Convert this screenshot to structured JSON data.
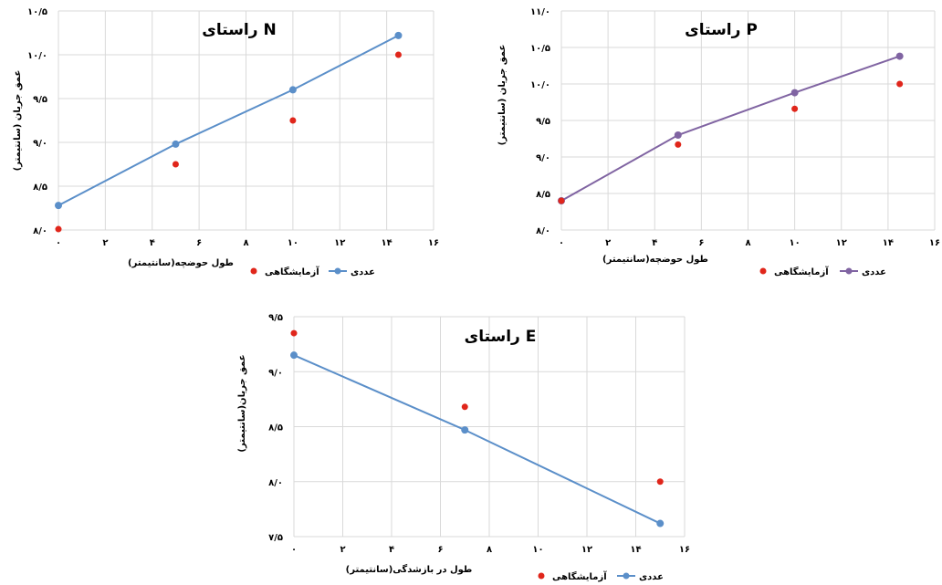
{
  "chart_data": [
    {
      "id": "N",
      "type": "line",
      "title": "راستای N",
      "xlabel": "طول حوضچه(سانتیمتر)",
      "ylabel": "عمق جریان (سانتیمتر)",
      "xlim": [
        0,
        16
      ],
      "ylim": [
        8.0,
        10.5
      ],
      "x_ticks": [
        0,
        2,
        4,
        6,
        8,
        10,
        12,
        14,
        16
      ],
      "x_tick_labels": [
        "۰",
        "۲",
        "۴",
        "۶",
        "۸",
        "۱۰",
        "۱۲",
        "۱۴",
        "۱۶"
      ],
      "y_ticks": [
        8.0,
        8.5,
        9.0,
        9.5,
        10.0,
        10.5
      ],
      "y_tick_labels": [
        "۸/۰",
        "۸/۵",
        "۹/۰",
        "۹/۵",
        "۱۰/۰",
        "۱۰/۵"
      ],
      "grid": true,
      "legend_position": "bottom",
      "series": [
        {
          "name": "عددی",
          "kind": "line",
          "color": "#5b8fc9",
          "x": [
            0,
            5,
            10,
            14.5
          ],
          "y": [
            8.28,
            8.98,
            9.6,
            10.22
          ]
        },
        {
          "name": "آزمایشگاهی",
          "kind": "scatter",
          "color": "#e0261b",
          "x": [
            0,
            5,
            10,
            14.5
          ],
          "y": [
            8.01,
            8.75,
            9.25,
            10.0
          ]
        }
      ]
    },
    {
      "id": "P",
      "type": "line",
      "title": "راستای P",
      "xlabel": "طول حوضچه(سانتیمتر)",
      "ylabel": "عمق جریان (سانتیمتر)",
      "xlim": [
        0,
        16
      ],
      "ylim": [
        8.0,
        11.0
      ],
      "x_ticks": [
        0,
        2,
        4,
        6,
        8,
        10,
        12,
        14,
        16
      ],
      "x_tick_labels": [
        "۰",
        "۲",
        "۴",
        "۶",
        "۸",
        "۱۰",
        "۱۲",
        "۱۴",
        "۱۶"
      ],
      "y_ticks": [
        8.0,
        8.5,
        9.0,
        9.5,
        10.0,
        10.5,
        11.0
      ],
      "y_tick_labels": [
        "۸/۰",
        "۸/۵",
        "۹/۰",
        "۹/۵",
        "۱۰/۰",
        "۱۰/۵",
        "۱۱/۰"
      ],
      "grid": true,
      "legend_position": "bottom",
      "series": [
        {
          "name": "عددی",
          "kind": "line",
          "color": "#8064a2",
          "x": [
            0,
            5,
            10,
            14.5
          ],
          "y": [
            8.4,
            9.3,
            9.88,
            10.38
          ]
        },
        {
          "name": "آزمایشگاهی",
          "kind": "scatter",
          "color": "#e0261b",
          "x": [
            0,
            5,
            10,
            14.5
          ],
          "y": [
            8.4,
            9.17,
            9.66,
            10.0
          ]
        }
      ]
    },
    {
      "id": "E",
      "type": "line",
      "title": "راستای E",
      "xlabel": "طول در بازشدگی(سانتیمتر)",
      "ylabel": "عمق جریان(سانتیمتر)",
      "xlim": [
        0,
        16
      ],
      "ylim": [
        7.5,
        9.5
      ],
      "x_ticks": [
        0,
        2,
        4,
        6,
        8,
        10,
        12,
        14,
        16
      ],
      "x_tick_labels": [
        "۰",
        "۲",
        "۴",
        "۶",
        "۸",
        "۱۰",
        "۱۲",
        "۱۴",
        "۱۶"
      ],
      "y_ticks": [
        7.5,
        8.0,
        8.5,
        9.0,
        9.5
      ],
      "y_tick_labels": [
        "۷/۵",
        "۸/۰",
        "۸/۵",
        "۹/۰",
        "۹/۵"
      ],
      "grid": true,
      "legend_position": "bottom",
      "series": [
        {
          "name": "عددی",
          "kind": "line",
          "color": "#5b8fc9",
          "x": [
            0,
            7,
            15
          ],
          "y": [
            9.15,
            8.47,
            7.62
          ]
        },
        {
          "name": "آزمایشگاهی",
          "kind": "scatter",
          "color": "#e0261b",
          "x": [
            0,
            7,
            15
          ],
          "y": [
            9.35,
            8.68,
            8.0
          ]
        }
      ]
    }
  ]
}
